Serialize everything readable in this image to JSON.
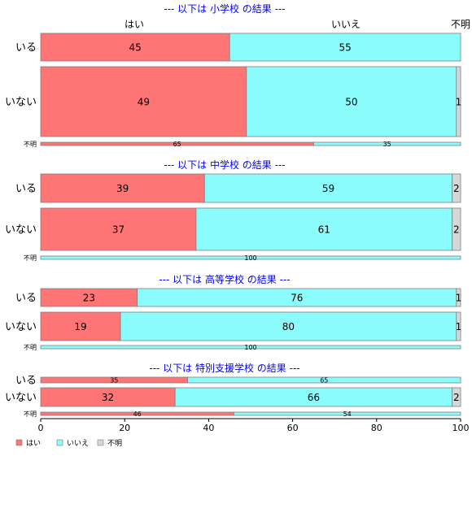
{
  "chart_data": {
    "type": "bar",
    "orientation": "horizontal-stacked-percent",
    "column_headers": [
      "はい",
      "いいえ",
      "不明"
    ],
    "xlim": [
      0,
      100
    ],
    "xticks": [
      "0",
      "20",
      "40",
      "60",
      "80",
      "100"
    ],
    "legend": {
      "placement": "bottom-left",
      "items": [
        {
          "label": "はい",
          "color": "#ff7575"
        },
        {
          "label": "いいえ",
          "color": "#8afcfc"
        },
        {
          "label": "不明",
          "color": "#d7d7d7"
        }
      ]
    },
    "series": [
      {
        "name": "はい",
        "color": "#ff7575"
      },
      {
        "name": "いいえ",
        "color": "#8afcfc"
      },
      {
        "name": "不明",
        "color": "#d7d7d7"
      }
    ],
    "panels": [
      {
        "title": "--- 以下は 小学校 の結果 ---",
        "rows": [
          {
            "label": "いる",
            "values": [
              45,
              55,
              0
            ],
            "labels": [
              "45",
              "55",
              ""
            ]
          },
          {
            "label": "いない",
            "values": [
              49,
              50,
              1
            ],
            "labels": [
              "49",
              "50",
              "1"
            ]
          },
          {
            "label": "不明",
            "values": [
              65,
              35,
              0
            ],
            "labels": [
              "65",
              "35",
              ""
            ]
          }
        ]
      },
      {
        "title": "--- 以下は 中学校 の結果 ---",
        "rows": [
          {
            "label": "いる",
            "values": [
              39,
              59,
              2
            ],
            "labels": [
              "39",
              "59",
              "2"
            ]
          },
          {
            "label": "いない",
            "values": [
              37,
              61,
              2
            ],
            "labels": [
              "37",
              "61",
              "2"
            ]
          },
          {
            "label": "不明",
            "values": [
              0,
              100,
              0
            ],
            "labels": [
              "",
              "100",
              ""
            ]
          }
        ]
      },
      {
        "title": "--- 以下は 高等学校 の結果 ---",
        "rows": [
          {
            "label": "いる",
            "values": [
              23,
              76,
              1
            ],
            "labels": [
              "23",
              "76",
              "1"
            ]
          },
          {
            "label": "いない",
            "values": [
              19,
              80,
              1
            ],
            "labels": [
              "19",
              "80",
              "1"
            ]
          },
          {
            "label": "不明",
            "values": [
              0,
              100,
              0
            ],
            "labels": [
              "",
              "100",
              ""
            ]
          }
        ]
      },
      {
        "title": "--- 以下は 特別支援学校 の結果 ---",
        "rows": [
          {
            "label": "いる",
            "values": [
              35,
              65,
              0
            ],
            "labels": [
              "35",
              "65",
              ""
            ]
          },
          {
            "label": "いない",
            "values": [
              32,
              66,
              2
            ],
            "labels": [
              "32",
              "66",
              "2"
            ]
          },
          {
            "label": "不明",
            "values": [
              46,
              54,
              0
            ],
            "labels": [
              "46",
              "54",
              ""
            ]
          }
        ]
      }
    ]
  }
}
